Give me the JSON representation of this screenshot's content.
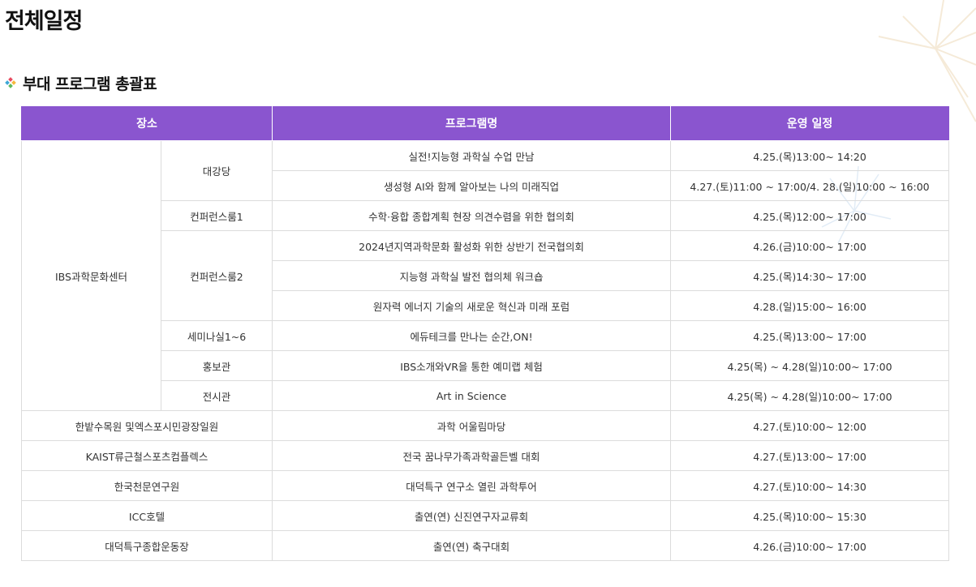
{
  "page_title": "전체일정",
  "section_title": "부대 프로그램 총괄표",
  "colors": {
    "header_bg": "#8a55cf",
    "header_text": "#ffffff",
    "border": "#dcdcdc"
  },
  "table": {
    "headers": {
      "venue": "장소",
      "program": "프로그램명",
      "schedule": "운영 일정"
    },
    "ibs": {
      "venue": "IBS과학문화센터",
      "rooms": [
        {
          "room": "대강당",
          "programs": [
            {
              "name": "실전!지능형 과학실 수업 만남",
              "schedule": "4.25.(목)13:00~ 14:20"
            },
            {
              "name": "생성형 AI와 함께 알아보는 나의 미래직업",
              "schedule": "4.27.(토)11:00 ~ 17:00/4. 28.(일)10:00 ~ 16:00"
            }
          ]
        },
        {
          "room": "컨퍼런스룸1",
          "programs": [
            {
              "name": "수학·융합 종합계획 현장 의견수렴을 위한 협의회",
              "schedule": "4.25.(목)12:00~ 17:00"
            }
          ]
        },
        {
          "room": "컨퍼런스룸2",
          "programs": [
            {
              "name": "2024년지역과학문화 활성화 위한 상반기 전국협의회",
              "schedule": "4.26.(금)10:00~ 17:00"
            },
            {
              "name": "지능형 과학실 발전 협의체 워크숍",
              "schedule": "4.25.(목)14:30~ 17:00"
            },
            {
              "name": "원자력 에너지 기술의 새로운 혁신과 미래 포럼",
              "schedule": "4.28.(일)15:00~ 16:00"
            }
          ]
        },
        {
          "room": "세미나실1~6",
          "programs": [
            {
              "name": "에듀테크를 만나는 순간,ON!",
              "schedule": "4.25.(목)13:00~ 17:00"
            }
          ]
        },
        {
          "room": "홍보관",
          "programs": [
            {
              "name": "IBS소개와VR을 통한 예미랩 체험",
              "schedule": "4.25(목) ~ 4.28(일)10:00~ 17:00"
            }
          ]
        },
        {
          "room": "전시관",
          "programs": [
            {
              "name": "Art in Science",
              "schedule": "4.25(목) ~ 4.28(일)10:00~ 17:00"
            }
          ]
        }
      ]
    },
    "others": [
      {
        "venue": "한밭수목원 및엑스포시민광장일원",
        "program": "과학 어울림마당",
        "schedule": "4.27.(토)10:00~ 12:00"
      },
      {
        "venue": "KAIST류근철스포츠컴플렉스",
        "program": "전국 꿈나무가족과학골든벨 대회",
        "schedule": "4.27.(토)13:00~ 17:00"
      },
      {
        "venue": "한국천문연구원",
        "program": "대덕특구 연구소 열린 과학투어",
        "schedule": "4.27.(토)10:00~ 14:30"
      },
      {
        "venue": "ICC호텔",
        "program": "출연(연) 신진연구자교류회",
        "schedule": "4.25.(목)10:00~ 15:30"
      },
      {
        "venue": "대덕특구종합운동장",
        "program": "출연(연) 축구대회",
        "schedule": "4.26.(금)10:00~ 17:00"
      }
    ]
  }
}
